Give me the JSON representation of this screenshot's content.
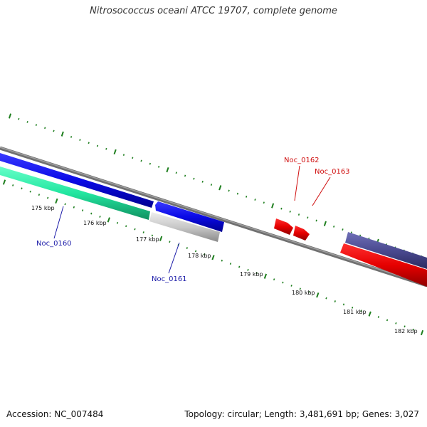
{
  "title": "Nitrosococcus oceani ATCC 19707, complete genome",
  "accession": "Accession: NC_007484",
  "topology": "Topology: circular; Length: 3,481,691 bp; Genes: 3,027",
  "colors": {
    "backbone": "#808080",
    "tick": "#1f7f1f",
    "label_blue": "#1a1aa8",
    "label_red": "#d01010",
    "blue": "#0a0ae6",
    "aqua": "#22e6a0",
    "silver": "#c8c8c8",
    "red": "#e60000",
    "purple": "#4a4a90"
  },
  "scale": {
    "labels": [
      "175 kbp",
      "176 kbp",
      "177 kbp",
      "178 kbp",
      "179 kbp",
      "180 kbp",
      "181 kbp",
      "182 kbp"
    ]
  },
  "features": [
    {
      "label": "Noc_0160",
      "color": "aqua",
      "strand": "reverse"
    },
    {
      "label": "",
      "color": "blue",
      "strand": "forward"
    },
    {
      "label": "Noc_0161",
      "color": "silver",
      "strand": "reverse"
    },
    {
      "label": "",
      "color": "blue",
      "strand": "forward"
    },
    {
      "label": "Noc_0162",
      "color": "red",
      "strand": "forward"
    },
    {
      "label": "Noc_0163",
      "color": "red",
      "strand": "forward"
    },
    {
      "label": "",
      "color": "purple",
      "strand": "forward"
    },
    {
      "label": "",
      "color": "red",
      "strand": "reverse"
    }
  ]
}
